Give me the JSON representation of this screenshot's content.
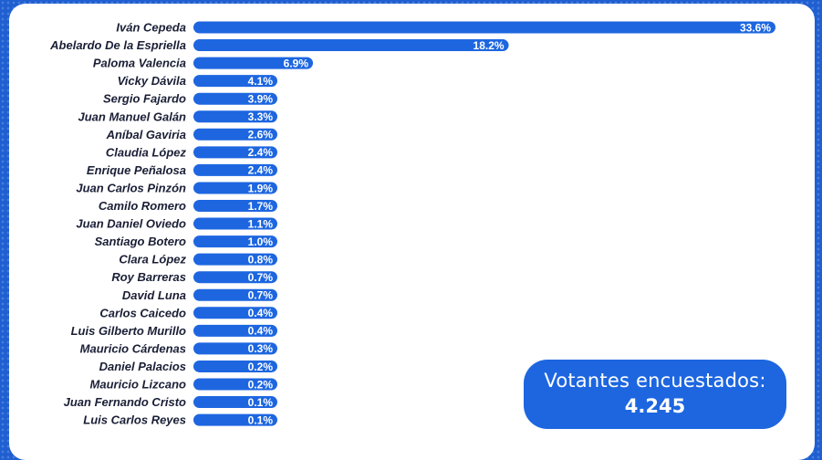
{
  "chart_data": {
    "type": "bar",
    "orientation": "horizontal",
    "categories": [
      "Iván Cepeda",
      "Abelardo De la Espriella",
      "Paloma Valencia",
      "Vicky Dávila",
      "Sergio Fajardo",
      "Juan Manuel Galán",
      "Aníbal Gaviria",
      "Claudia López",
      "Enrique Peñalosa",
      "Juan Carlos Pinzón",
      "Camilo Romero",
      "Juan Daniel Oviedo",
      "Santiago Botero",
      "Clara López",
      "Roy Barreras",
      "David Luna",
      "Carlos Caicedo",
      "Luis Gilberto Murillo",
      "Mauricio Cárdenas",
      "Daniel Palacios",
      "Mauricio Lizcano",
      "Juan Fernando Cristo",
      "Luis Carlos Reyes"
    ],
    "values": [
      33.6,
      18.2,
      6.9,
      4.1,
      3.9,
      3.3,
      2.6,
      2.4,
      2.4,
      1.9,
      1.7,
      1.1,
      1.0,
      0.8,
      0.7,
      0.7,
      0.4,
      0.4,
      0.3,
      0.2,
      0.2,
      0.1,
      0.1
    ],
    "value_labels": [
      "33.6%",
      "18.2%",
      "6.9%",
      "4.1%",
      "3.9%",
      "3.3%",
      "2.6%",
      "2.4%",
      "2.4%",
      "1.9%",
      "1.7%",
      "1.1%",
      "1.0%",
      "0.8%",
      "0.7%",
      "0.7%",
      "0.4%",
      "0.4%",
      "0.3%",
      "0.2%",
      "0.2%",
      "0.1%",
      "0.1%"
    ],
    "bar_color": "#1d66e0",
    "label_color": "#1a1f36",
    "value_label_color": "#ffffff"
  },
  "badge": {
    "label": "Votantes encuestados:",
    "value": "4.245"
  },
  "colors": {
    "background": "#1f5fd1",
    "card": "#ffffff",
    "badge": "#1d66e0"
  }
}
